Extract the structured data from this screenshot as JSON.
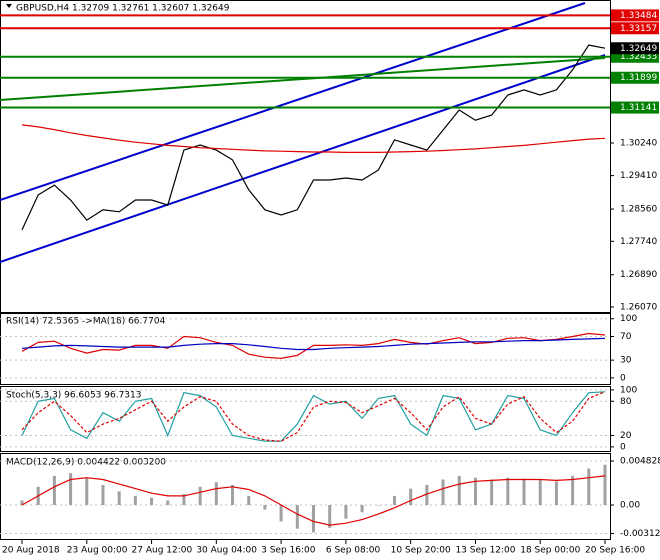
{
  "chart_data": [
    {
      "type": "line",
      "title": "GBPUSD,H4 1.32709 1.32761 1.32607 1.32649",
      "categories": [
        "20 Aug 2018",
        null,
        null,
        null,
        "23 Aug 00:00",
        null,
        null,
        null,
        "27 Aug 12:00",
        null,
        null,
        null,
        "30 Aug 04:00",
        null,
        null,
        null,
        "3 Sep 16:00",
        null,
        null,
        null,
        "6 Sep 08:00",
        null,
        null,
        null,
        "10 Sep 20:00",
        null,
        null,
        null,
        "13 Sep 12:00",
        null,
        null,
        null,
        "18 Sep 00:00",
        null,
        null,
        null,
        "20 Sep 16:00"
      ],
      "series": [
        {
          "color": "#000000",
          "values": [
            1.2803,
            1.2892,
            1.2917,
            1.2879,
            1.2828,
            1.2854,
            1.2849,
            1.2879,
            1.2879,
            1.2866,
            1.3006,
            1.3019,
            1.3006,
            1.2981,
            1.2905,
            1.2854,
            1.2841,
            1.2854,
            1.293,
            1.293,
            1.2935,
            1.293,
            1.2955,
            1.3032,
            1.3019,
            1.3006,
            1.3057,
            1.3108,
            1.3082,
            1.3095,
            1.3146,
            1.3159,
            1.3146,
            1.3159,
            1.321,
            1.3273,
            1.3265
          ]
        },
        {
          "color": "#e00000",
          "values": [
            1.307,
            1.3065,
            1.3058,
            1.305,
            1.3043,
            1.3037,
            1.3031,
            1.3026,
            1.3022,
            1.3018,
            1.3015,
            1.3012,
            1.301,
            1.3008,
            1.3006,
            1.3004,
            1.3003,
            1.3002,
            1.3001,
            1.3001,
            1.3,
            1.3,
            1.3,
            1.3001,
            1.3002,
            1.3003,
            1.3005,
            1.3007,
            1.3009,
            1.3012,
            1.3015,
            1.3018,
            1.3022,
            1.3026,
            1.303,
            1.3034,
            1.3036
          ]
        }
      ],
      "ylim": [
        1.25917,
        1.33876
      ],
      "yticks": [
        {
          "value": 1.2607,
          "label": "1.26070"
        },
        {
          "value": 1.2689,
          "label": "1.26890"
        },
        {
          "value": 1.2774,
          "label": "1.27740"
        },
        {
          "value": 1.2856,
          "label": "1.28560"
        },
        {
          "value": 1.2941,
          "label": "1.29410"
        },
        {
          "value": 1.3024,
          "label": "1.30240"
        }
      ],
      "levels": [
        {
          "value": 1.33484,
          "color": "#e00000"
        },
        {
          "value": 1.33157,
          "color": "#e00000"
        },
        {
          "value": 1.32433,
          "color": "#008000"
        },
        {
          "value": 1.31899,
          "color": "#008000"
        },
        {
          "value": 1.31141,
          "color": "#008000"
        },
        {
          "value": 1.32649,
          "color": "#000000"
        }
      ]
    },
    {
      "type": "line",
      "title": "RSI(14) 72.5365 ->MA(18) 66.7704",
      "series": [
        {
          "color": "#e00000",
          "values": [
            45,
            60,
            62,
            50,
            42,
            48,
            47,
            55,
            55,
            50,
            70,
            68,
            60,
            55,
            40,
            35,
            33,
            38,
            55,
            55,
            56,
            55,
            58,
            65,
            60,
            57,
            63,
            68,
            58,
            60,
            67,
            68,
            63,
            65,
            70,
            75,
            72.5365
          ]
        },
        {
          "color": "#0000c0",
          "values": [
            50,
            52,
            54,
            55,
            54,
            53,
            52,
            52,
            52,
            52,
            55,
            57,
            58,
            58,
            56,
            53,
            50,
            48,
            48,
            50,
            51,
            52,
            53,
            55,
            57,
            58,
            59,
            60,
            61,
            61,
            62,
            63,
            63,
            64,
            65,
            66,
            66.7704
          ]
        }
      ],
      "ylim": [
        -12,
        108
      ],
      "yticks": [
        100,
        70,
        30,
        0
      ]
    },
    {
      "type": "line",
      "title": "Stoch(5,3,3) 96.6053 96.7313",
      "series": [
        {
          "color": "#20a0a0",
          "values": [
            20,
            80,
            85,
            30,
            15,
            60,
            45,
            80,
            85,
            20,
            95,
            90,
            70,
            20,
            15,
            10,
            10,
            40,
            90,
            75,
            80,
            50,
            85,
            90,
            40,
            20,
            90,
            85,
            30,
            40,
            90,
            85,
            30,
            20,
            60,
            95,
            96.6053
          ]
        },
        {
          "color": "#e00000",
          "dash": true,
          "values": [
            30,
            60,
            80,
            55,
            25,
            40,
            50,
            65,
            80,
            45,
            70,
            88,
            80,
            40,
            20,
            12,
            10,
            25,
            70,
            80,
            78,
            60,
            72,
            85,
            60,
            30,
            70,
            88,
            50,
            40,
            75,
            88,
            50,
            25,
            45,
            85,
            96.7313
          ]
        }
      ],
      "ylim": [
        -9,
        105
      ],
      "yticks": [
        100,
        80,
        20,
        0
      ]
    },
    {
      "type": "bar",
      "title": "MACD(12,26,9) 0.004422 0.003200",
      "color": "#a0a0a0",
      "values": [
        0.0005,
        0.002,
        0.0032,
        0.0035,
        0.003,
        0.0022,
        0.0015,
        0.001,
        0.0008,
        0.0005,
        0.0012,
        0.002,
        0.0025,
        0.0022,
        0.001,
        -0.0005,
        -0.0018,
        -0.0026,
        -0.003,
        -0.0025,
        -0.0015,
        -0.0008,
        0,
        0.001,
        0.0018,
        0.0022,
        0.0028,
        0.0032,
        0.003,
        0.0028,
        0.003,
        0.0029,
        0.0028,
        0.0026,
        0.0032,
        0.004,
        0.004422
      ],
      "signal": {
        "color": "#e00000",
        "values": [
          0,
          0.001,
          0.002,
          0.0028,
          0.003,
          0.0028,
          0.0023,
          0.0018,
          0.0013,
          0.001,
          0.001,
          0.0014,
          0.0018,
          0.002,
          0.0017,
          0.001,
          0,
          -0.001,
          -0.0018,
          -0.0022,
          -0.002,
          -0.0016,
          -0.001,
          -0.0003,
          0.0005,
          0.0012,
          0.0018,
          0.0023,
          0.0026,
          0.0027,
          0.0028,
          0.0028,
          0.0028,
          0.0027,
          0.0028,
          0.003,
          0.0032
        ]
      },
      "ylim": [
        -0.00384,
        0.0056
      ],
      "yticks": [
        0.004828,
        {
          "value": 0,
          "label": "0.00"
        },
        -0.003124
      ]
    }
  ]
}
